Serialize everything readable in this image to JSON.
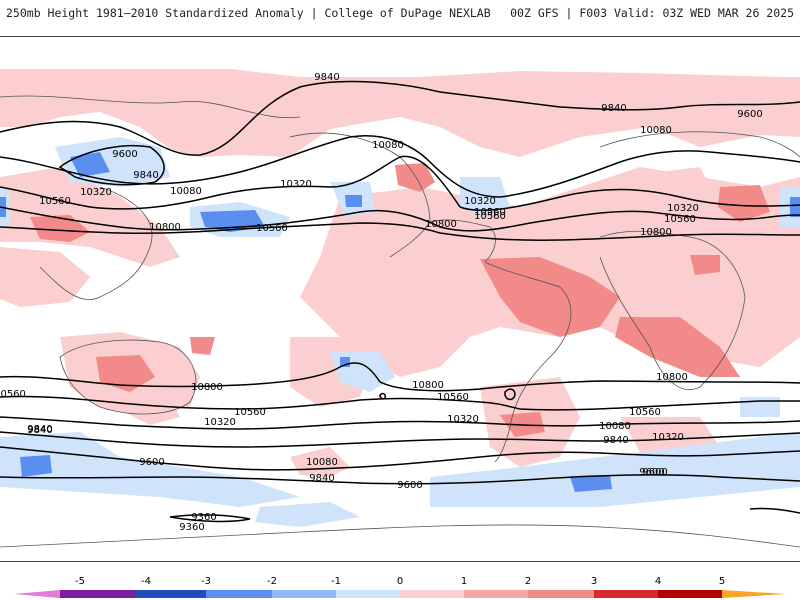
{
  "header": {
    "left_title": "250mb Height 1981–2010 Standardized Anomaly | College of DuPage NEXLAB",
    "right_title": "00Z GFS | F003 Valid: 03Z WED MAR 26 2025"
  },
  "colors": {
    "neg5": "#e37bd8",
    "neg4": "#7b1fa2",
    "neg3": "#1f4fb8",
    "neg2": "#5a8ff0",
    "neg1": "#cfe3fb",
    "zero": "#ffffff",
    "pos1": "#fbcfcf",
    "pos2": "#f28a8a",
    "pos3": "#d42b2b",
    "pos4": "#b30000",
    "pos5": "#f6a524",
    "contour": "#000000",
    "coast": "#555555"
  },
  "colorbar": {
    "labels": [
      "-5",
      "-4",
      "-3",
      "-2",
      "-1",
      "0",
      "1",
      "2",
      "3",
      "4",
      "5"
    ]
  },
  "contour_labels": [
    {
      "text": "9840"
    },
    {
      "text": "9840"
    },
    {
      "text": "9600"
    },
    {
      "text": "9600"
    },
    {
      "text": "9840"
    },
    {
      "text": "10080"
    },
    {
      "text": "10080"
    },
    {
      "text": "10080"
    },
    {
      "text": "10320"
    },
    {
      "text": "10320"
    },
    {
      "text": "10320"
    },
    {
      "text": "10320"
    },
    {
      "text": "10560"
    },
    {
      "text": "10560"
    },
    {
      "text": "10560"
    },
    {
      "text": "10560"
    },
    {
      "text": "10800"
    },
    {
      "text": "10800"
    },
    {
      "text": "10800"
    },
    {
      "text": "10560"
    },
    {
      "text": "10800"
    },
    {
      "text": "10800"
    },
    {
      "text": "10800"
    },
    {
      "text": "10560"
    },
    {
      "text": "10560"
    },
    {
      "text": "10560"
    },
    {
      "text": "10320"
    },
    {
      "text": "10320"
    },
    {
      "text": "10320"
    },
    {
      "text": "10080"
    },
    {
      "text": "10080"
    },
    {
      "text": "9840"
    },
    {
      "text": "9840"
    },
    {
      "text": "9840"
    },
    {
      "text": "9600"
    },
    {
      "text": "9600"
    },
    {
      "text": "9600"
    },
    {
      "text": "9360"
    },
    {
      "text": "9360"
    },
    {
      "text": "9840"
    },
    {
      "text": "9600"
    },
    {
      "text": "10560"
    }
  ]
}
